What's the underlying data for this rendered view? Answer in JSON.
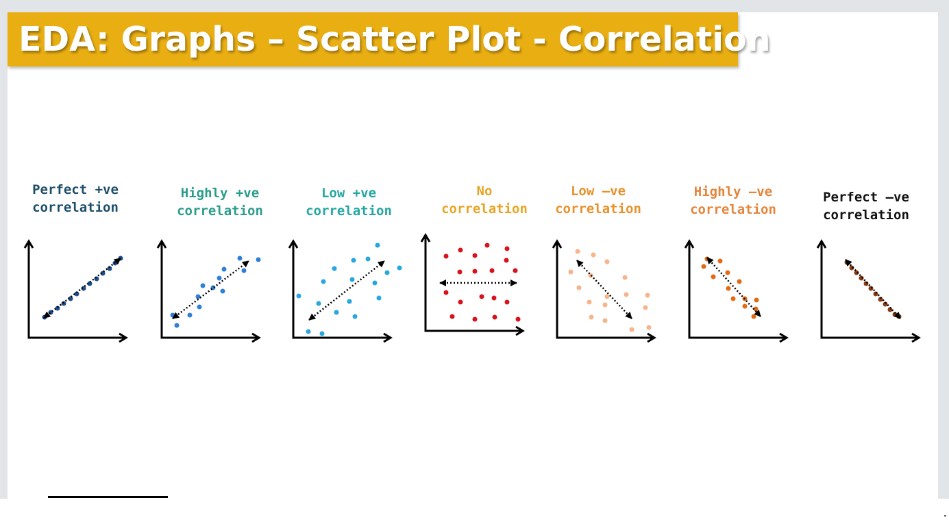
{
  "slide": {
    "title": "EDA: Graphs – Scatter Plot - Correlation"
  },
  "panels": [
    {
      "line1": "Perfect +ve",
      "line2": "correlation",
      "color": "#1b4e6b",
      "dot_color": "#1e4f8c",
      "icon": "perfect-positive-scatter-icon"
    },
    {
      "line1": "Highly +ve",
      "line2": "correlation",
      "color": "#2a9c8c",
      "dot_color": "#2f7fd8",
      "icon": "highly-positive-scatter-icon"
    },
    {
      "line1": "Low +ve",
      "line2": "correlation",
      "color": "#23a7a2",
      "dot_color": "#27a6e0",
      "icon": "low-positive-scatter-icon"
    },
    {
      "line1": "No",
      "line2": "correlation",
      "color": "#e8a525",
      "dot_color": "#d8111b",
      "icon": "no-correlation-scatter-icon"
    },
    {
      "line1": "Low –ve",
      "line2": "correlation",
      "color": "#e8922b",
      "dot_color": "#f7b48a",
      "icon": "low-negative-scatter-icon"
    },
    {
      "line1": "Highly –ve",
      "line2": "correlation",
      "color": "#e6843a",
      "dot_color": "#e36a12",
      "icon": "highly-negative-scatter-icon"
    },
    {
      "line1": "Perfect –ve",
      "line2": "correlation",
      "color": "#111111",
      "dot_color": "#8a3a10",
      "icon": "perfect-negative-scatter-icon"
    }
  ]
}
